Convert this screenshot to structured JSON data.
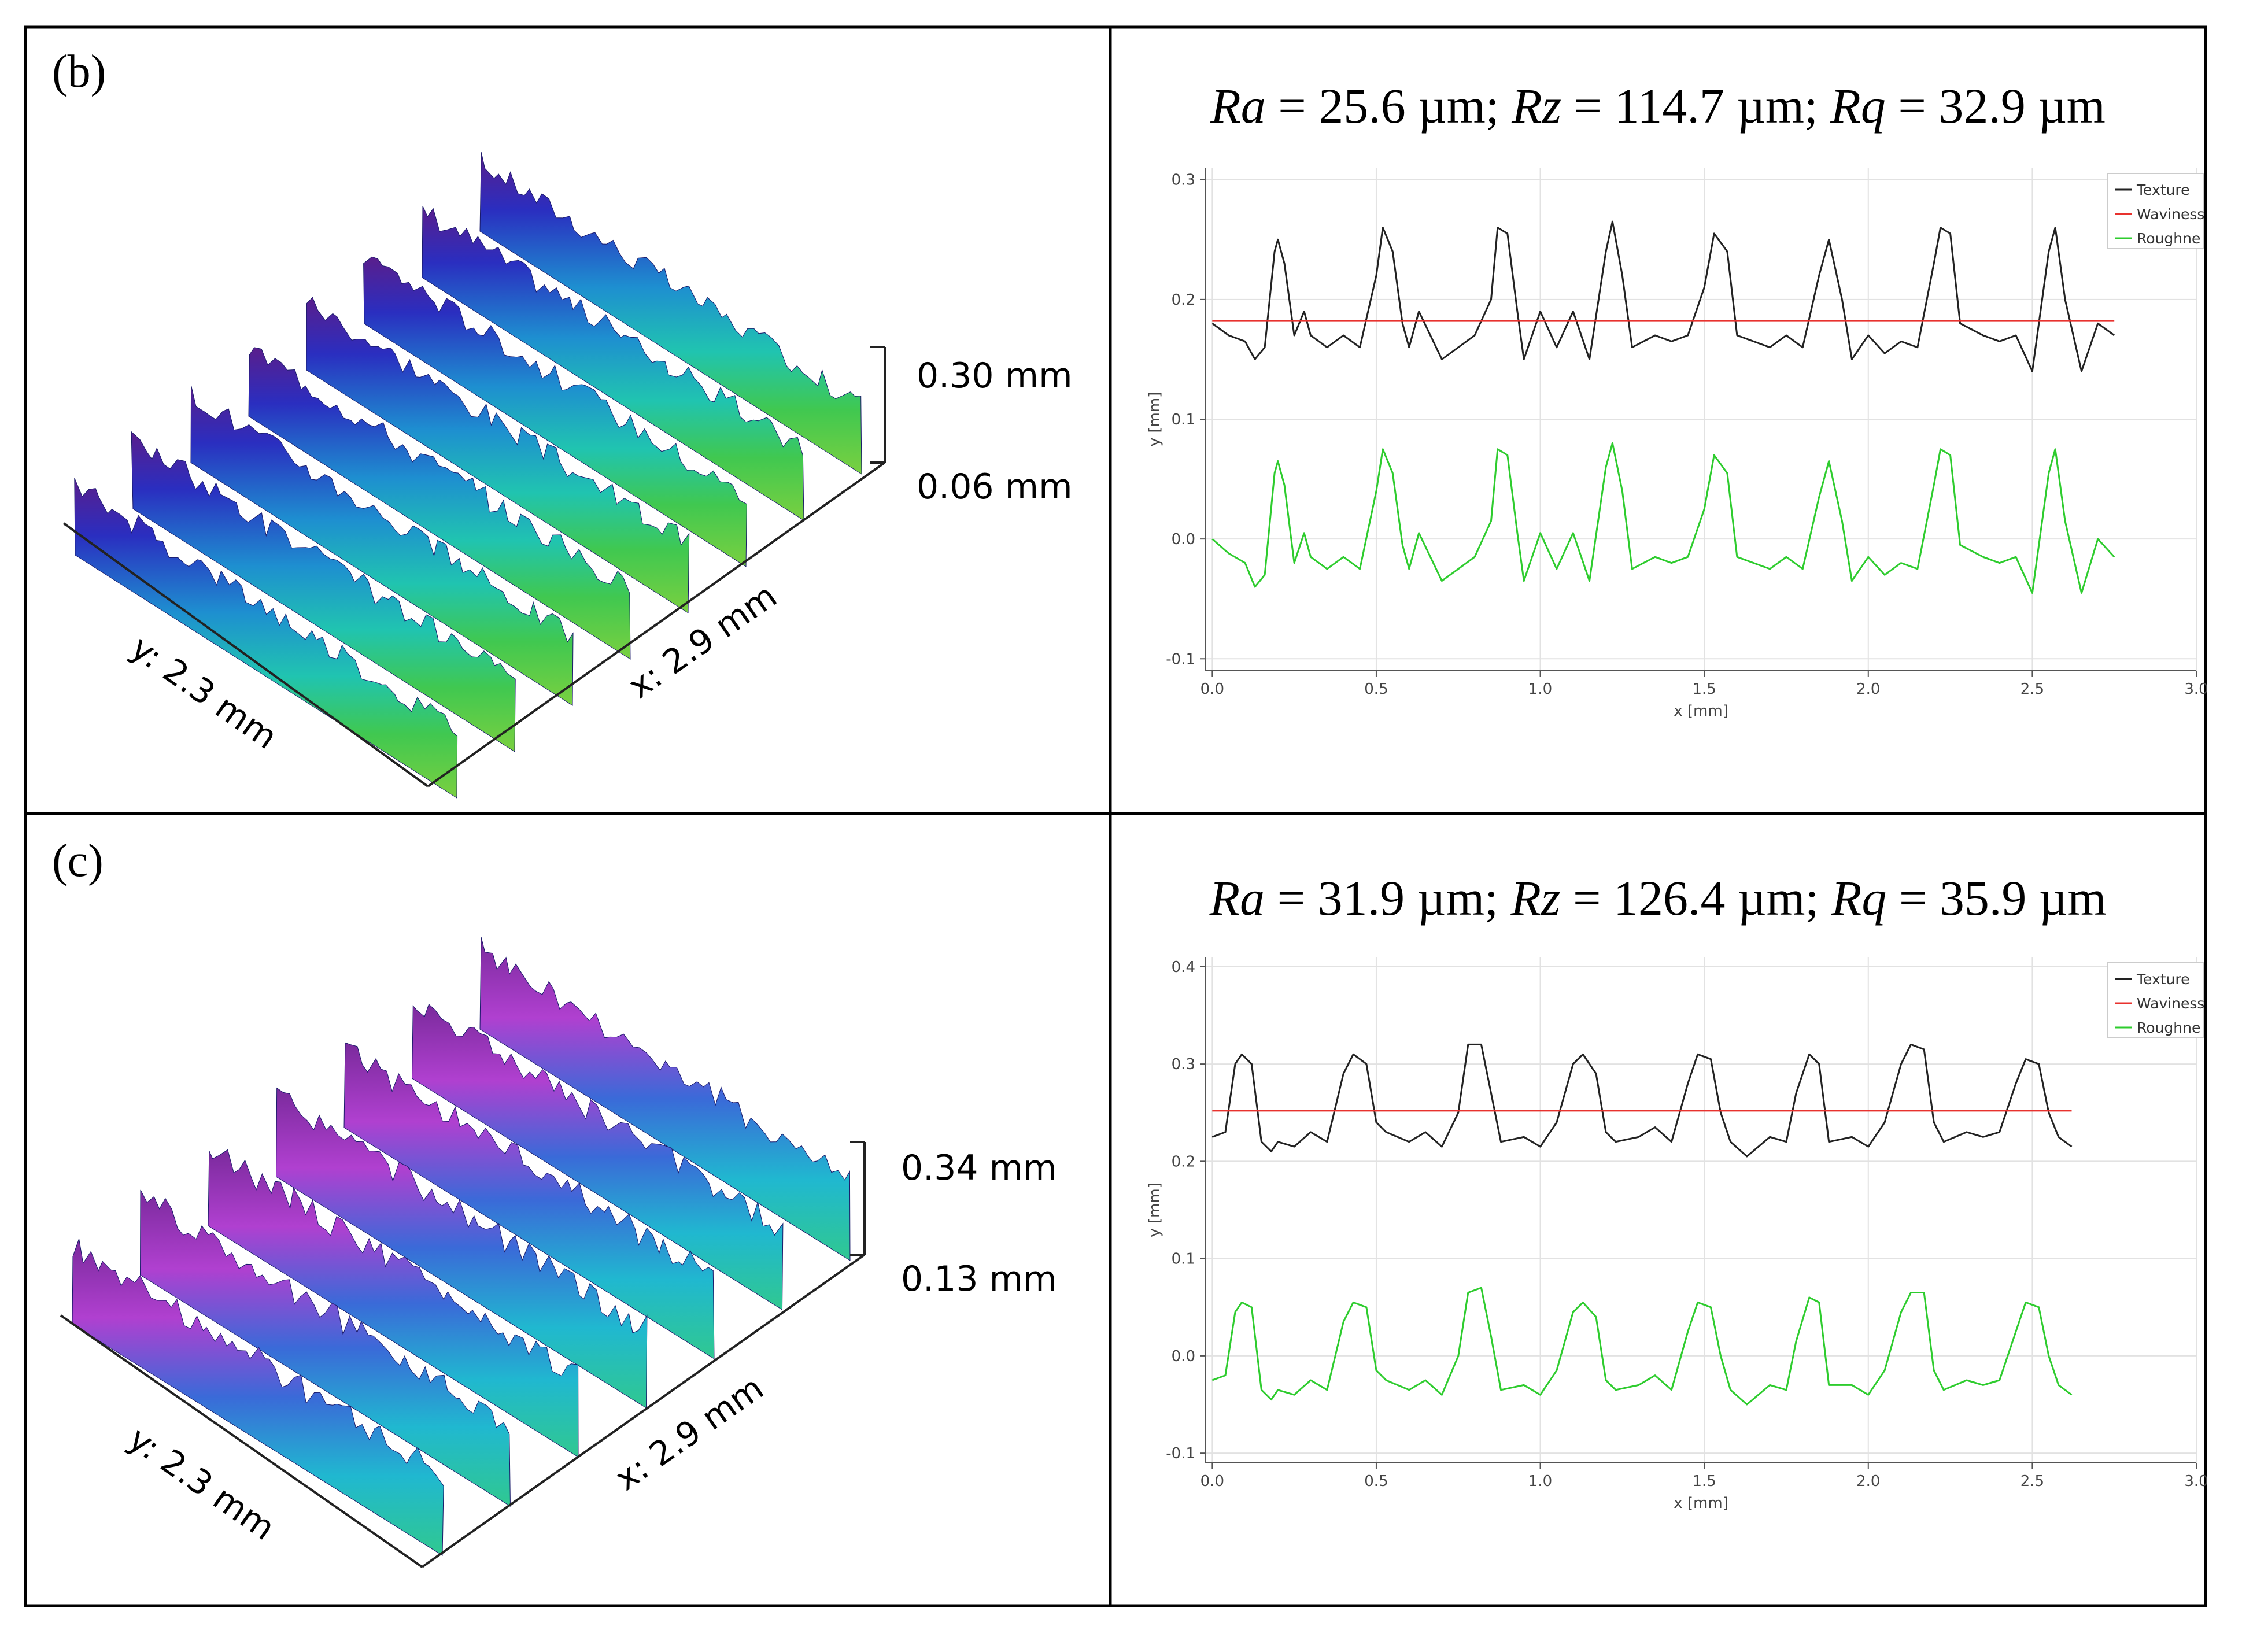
{
  "panels": [
    {
      "id": "b",
      "label": "(b)",
      "surface": {
        "z_max_label": "0.30 mm",
        "z_min_label": "0.06 mm",
        "x_label": "x: 2.9 mm",
        "y_label": "y: 2.3 mm",
        "ridge_count": 8
      },
      "metrics": {
        "ra_sym": "Ra",
        "ra_val": " = 25.6 µm; ",
        "rz_sym": "Rz",
        "rz_val": " = 114.7 µm; ",
        "rq_sym": "Rq",
        "rq_val": " = 32.9 µm"
      }
    },
    {
      "id": "c",
      "label": "(c)",
      "surface": {
        "z_max_label": "0.34 mm",
        "z_min_label": "0.13 mm",
        "x_label": "x: 2.9 mm",
        "y_label": "y: 2.3 mm",
        "ridge_count": 7
      },
      "metrics": {
        "ra_sym": "Ra",
        "ra_val": " = 31.9 µm; ",
        "rz_sym": "Rz",
        "rz_val": " = 126.4 µm; ",
        "rq_sym": "Rq",
        "rq_val": " = 35.9 µm"
      }
    }
  ],
  "colors": {
    "texture": "#222222",
    "waviness": "#e8322e",
    "roughness": "#2ecc2e"
  },
  "chart_data": [
    {
      "type": "line",
      "panel": "b",
      "xlabel": "x [mm]",
      "ylabel": "y [mm]",
      "xlim": [
        -0.02,
        3.0
      ],
      "ylim": [
        -0.11,
        0.31
      ],
      "xticks": [
        0.0,
        0.5,
        1.0,
        1.5,
        2.0,
        2.5,
        3.0
      ],
      "xtick_labels": [
        "0.0",
        "0.5",
        "1.0",
        "1.5",
        "2.0",
        "2.5",
        "3.0"
      ],
      "yticks": [
        -0.1,
        0.0,
        0.1,
        0.2,
        0.3
      ],
      "ytick_labels": [
        "-0.1",
        "0.0",
        "0.1",
        "0.2",
        "0.3"
      ],
      "legend": [
        "Texture",
        "Waviness",
        "Roughne"
      ],
      "legend_position": "top-right",
      "grid": true,
      "series": [
        {
          "name": "Texture",
          "x": [
            0.0,
            0.05,
            0.1,
            0.13,
            0.16,
            0.19,
            0.2,
            0.22,
            0.25,
            0.28,
            0.3,
            0.35,
            0.4,
            0.45,
            0.5,
            0.52,
            0.55,
            0.58,
            0.6,
            0.63,
            0.7,
            0.75,
            0.8,
            0.85,
            0.87,
            0.9,
            0.93,
            0.95,
            1.0,
            1.05,
            1.1,
            1.15,
            1.2,
            1.22,
            1.25,
            1.28,
            1.35,
            1.4,
            1.45,
            1.5,
            1.53,
            1.57,
            1.6,
            1.7,
            1.75,
            1.8,
            1.85,
            1.88,
            1.92,
            1.95,
            2.0,
            2.05,
            2.1,
            2.15,
            2.2,
            2.22,
            2.25,
            2.28,
            2.35,
            2.4,
            2.45,
            2.5,
            2.55,
            2.57,
            2.6,
            2.65,
            2.7,
            2.75
          ],
          "y": [
            0.18,
            0.17,
            0.165,
            0.15,
            0.16,
            0.24,
            0.25,
            0.23,
            0.17,
            0.19,
            0.17,
            0.16,
            0.17,
            0.16,
            0.22,
            0.26,
            0.24,
            0.18,
            0.16,
            0.19,
            0.15,
            0.16,
            0.17,
            0.2,
            0.26,
            0.255,
            0.19,
            0.15,
            0.19,
            0.16,
            0.19,
            0.15,
            0.24,
            0.265,
            0.22,
            0.16,
            0.17,
            0.165,
            0.17,
            0.21,
            0.255,
            0.24,
            0.17,
            0.16,
            0.17,
            0.16,
            0.22,
            0.25,
            0.2,
            0.15,
            0.17,
            0.155,
            0.165,
            0.16,
            0.23,
            0.26,
            0.255,
            0.18,
            0.17,
            0.165,
            0.17,
            0.14,
            0.24,
            0.26,
            0.2,
            0.14,
            0.18,
            0.17
          ]
        },
        {
          "name": "Waviness",
          "x": [
            0.0,
            2.75
          ],
          "y": [
            0.182,
            0.182
          ]
        },
        {
          "name": "Roughness",
          "x": [
            0.0,
            0.05,
            0.1,
            0.13,
            0.16,
            0.19,
            0.2,
            0.22,
            0.25,
            0.28,
            0.3,
            0.35,
            0.4,
            0.45,
            0.5,
            0.52,
            0.55,
            0.58,
            0.6,
            0.63,
            0.7,
            0.75,
            0.8,
            0.85,
            0.87,
            0.9,
            0.93,
            0.95,
            1.0,
            1.05,
            1.1,
            1.15,
            1.2,
            1.22,
            1.25,
            1.28,
            1.35,
            1.4,
            1.45,
            1.5,
            1.53,
            1.57,
            1.6,
            1.7,
            1.75,
            1.8,
            1.85,
            1.88,
            1.92,
            1.95,
            2.0,
            2.05,
            2.1,
            2.15,
            2.2,
            2.22,
            2.25,
            2.28,
            2.35,
            2.4,
            2.45,
            2.5,
            2.55,
            2.57,
            2.6,
            2.65,
            2.7,
            2.75
          ],
          "y": [
            0.0,
            -0.012,
            -0.02,
            -0.04,
            -0.03,
            0.055,
            0.065,
            0.045,
            -0.02,
            0.005,
            -0.015,
            -0.025,
            -0.015,
            -0.025,
            0.04,
            0.075,
            0.055,
            -0.005,
            -0.025,
            0.005,
            -0.035,
            -0.025,
            -0.015,
            0.015,
            0.075,
            0.07,
            0.005,
            -0.035,
            0.005,
            -0.025,
            0.005,
            -0.035,
            0.06,
            0.08,
            0.04,
            -0.025,
            -0.015,
            -0.02,
            -0.015,
            0.025,
            0.07,
            0.055,
            -0.015,
            -0.025,
            -0.015,
            -0.025,
            0.035,
            0.065,
            0.015,
            -0.035,
            -0.015,
            -0.03,
            -0.02,
            -0.025,
            0.045,
            0.075,
            0.07,
            -0.005,
            -0.015,
            -0.02,
            -0.015,
            -0.045,
            0.055,
            0.075,
            0.015,
            -0.045,
            0.0,
            -0.015
          ]
        }
      ]
    },
    {
      "type": "line",
      "panel": "c",
      "xlabel": "x [mm]",
      "ylabel": "y [mm]",
      "xlim": [
        -0.02,
        3.0
      ],
      "ylim": [
        -0.11,
        0.41
      ],
      "xticks": [
        0.0,
        0.5,
        1.0,
        1.5,
        2.0,
        2.5,
        3.0
      ],
      "xtick_labels": [
        "0.0",
        "0.5",
        "1.0",
        "1.5",
        "2.0",
        "2.5",
        "3.0"
      ],
      "yticks": [
        -0.1,
        0.0,
        0.1,
        0.2,
        0.3,
        0.4
      ],
      "ytick_labels": [
        "-0.1",
        "0.0",
        "0.1",
        "0.2",
        "0.3",
        "0.4"
      ],
      "legend": [
        "Texture",
        "Waviness",
        "Roughne"
      ],
      "legend_position": "top-right",
      "grid": true,
      "series": [
        {
          "name": "Texture",
          "x": [
            0.0,
            0.04,
            0.07,
            0.09,
            0.12,
            0.15,
            0.18,
            0.2,
            0.25,
            0.3,
            0.35,
            0.4,
            0.43,
            0.47,
            0.5,
            0.53,
            0.6,
            0.65,
            0.7,
            0.75,
            0.78,
            0.82,
            0.85,
            0.88,
            0.95,
            1.0,
            1.05,
            1.1,
            1.13,
            1.17,
            1.2,
            1.23,
            1.3,
            1.35,
            1.4,
            1.45,
            1.48,
            1.52,
            1.55,
            1.58,
            1.63,
            1.7,
            1.75,
            1.78,
            1.82,
            1.85,
            1.88,
            1.95,
            2.0,
            2.05,
            2.1,
            2.13,
            2.17,
            2.2,
            2.23,
            2.3,
            2.35,
            2.4,
            2.45,
            2.48,
            2.52,
            2.55,
            2.58,
            2.62
          ],
          "y": [
            0.225,
            0.23,
            0.3,
            0.31,
            0.3,
            0.22,
            0.21,
            0.22,
            0.215,
            0.23,
            0.22,
            0.29,
            0.31,
            0.3,
            0.24,
            0.23,
            0.22,
            0.23,
            0.215,
            0.25,
            0.32,
            0.32,
            0.27,
            0.22,
            0.225,
            0.215,
            0.24,
            0.3,
            0.31,
            0.29,
            0.23,
            0.22,
            0.225,
            0.235,
            0.22,
            0.28,
            0.31,
            0.305,
            0.25,
            0.22,
            0.205,
            0.225,
            0.22,
            0.27,
            0.31,
            0.3,
            0.22,
            0.225,
            0.215,
            0.24,
            0.3,
            0.32,
            0.315,
            0.24,
            0.22,
            0.23,
            0.225,
            0.23,
            0.28,
            0.305,
            0.3,
            0.25,
            0.225,
            0.215
          ]
        },
        {
          "name": "Waviness",
          "x": [
            0.0,
            2.62
          ],
          "y": [
            0.252,
            0.252
          ]
        },
        {
          "name": "Roughness",
          "x": [
            0.0,
            0.04,
            0.07,
            0.09,
            0.12,
            0.15,
            0.18,
            0.2,
            0.25,
            0.3,
            0.35,
            0.4,
            0.43,
            0.47,
            0.5,
            0.53,
            0.6,
            0.65,
            0.7,
            0.75,
            0.78,
            0.82,
            0.85,
            0.88,
            0.95,
            1.0,
            1.05,
            1.1,
            1.13,
            1.17,
            1.2,
            1.23,
            1.3,
            1.35,
            1.4,
            1.45,
            1.48,
            1.52,
            1.55,
            1.58,
            1.63,
            1.7,
            1.75,
            1.78,
            1.82,
            1.85,
            1.88,
            1.95,
            2.0,
            2.05,
            2.1,
            2.13,
            2.17,
            2.2,
            2.23,
            2.3,
            2.35,
            2.4,
            2.45,
            2.48,
            2.52,
            2.55,
            2.58,
            2.62
          ],
          "y": [
            -0.025,
            -0.02,
            0.045,
            0.055,
            0.05,
            -0.035,
            -0.045,
            -0.035,
            -0.04,
            -0.025,
            -0.035,
            0.035,
            0.055,
            0.05,
            -0.015,
            -0.025,
            -0.035,
            -0.025,
            -0.04,
            0.0,
            0.065,
            0.07,
            0.02,
            -0.035,
            -0.03,
            -0.04,
            -0.015,
            0.045,
            0.055,
            0.04,
            -0.025,
            -0.035,
            -0.03,
            -0.02,
            -0.035,
            0.025,
            0.055,
            0.05,
            0.0,
            -0.035,
            -0.05,
            -0.03,
            -0.035,
            0.015,
            0.06,
            0.055,
            -0.03,
            -0.03,
            -0.04,
            -0.015,
            0.045,
            0.065,
            0.065,
            -0.015,
            -0.035,
            -0.025,
            -0.03,
            -0.025,
            0.025,
            0.055,
            0.05,
            0.0,
            -0.03,
            -0.04
          ]
        }
      ]
    }
  ]
}
